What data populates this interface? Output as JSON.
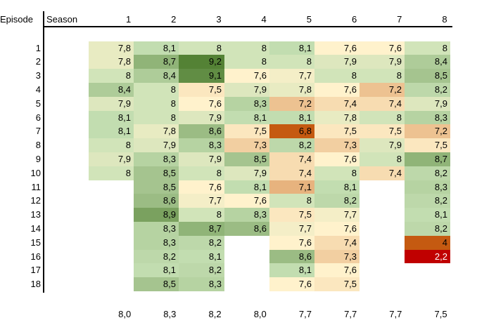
{
  "chart_data": {
    "type": "heatmap",
    "row_header": "Episode",
    "col_header": "Season",
    "seasons": [
      "1",
      "2",
      "3",
      "4",
      "5",
      "6",
      "7",
      "8"
    ],
    "episodes": [
      "1",
      "2",
      "3",
      "4",
      "5",
      "6",
      "7",
      "8",
      "9",
      "10",
      "11",
      "12",
      "13",
      "14",
      "15",
      "16",
      "17",
      "18"
    ],
    "ratings": [
      [
        "7,8",
        "7,8",
        "8",
        "8,4",
        "7,9",
        "8,1",
        "8,1",
        "8",
        "7,9",
        "8",
        null,
        null,
        null,
        null,
        null,
        null,
        null,
        null
      ],
      [
        "8,1",
        "8,7",
        "8,4",
        "8",
        "8",
        "8",
        "7,8",
        "7,9",
        "8,3",
        "8,5",
        "8,5",
        "8,6",
        "8,9",
        "8,3",
        "8,3",
        "8,2",
        "8,1",
        "8,5"
      ],
      [
        "8",
        "9,2",
        "9,1",
        "7,5",
        "7,6",
        "7,9",
        "8,6",
        "8,3",
        "7,9",
        "8",
        "7,6",
        "7,7",
        "8",
        "8,7",
        "8,2",
        "8,1",
        "8,2",
        "8,3"
      ],
      [
        "8",
        "8",
        "7,6",
        "7,9",
        "8,3",
        "8,1",
        "7,5",
        "7,3",
        "8,5",
        "7,9",
        "8,1",
        "7,6",
        "8,3",
        "8,6",
        null,
        null,
        null,
        null
      ],
      [
        "8,1",
        "8",
        "7,7",
        "7,8",
        "7,2",
        "8,1",
        "6,8",
        "8,2",
        "7,4",
        "7,4",
        "7,1",
        "8",
        "7,5",
        "7,7",
        "7,6",
        "8,6",
        "8,1",
        "7,6"
      ],
      [
        "7,6",
        "7,9",
        "8",
        "7,6",
        "7,4",
        "7,8",
        "7,5",
        "7,3",
        "7,6",
        "8",
        "8,1",
        "8,2",
        "7,7",
        "7,6",
        "7,4",
        "7,3",
        "7,6",
        "7,5"
      ],
      [
        "7,6",
        "7,9",
        "8",
        "7,2",
        "7,4",
        "8",
        "7,5",
        "7,9",
        "8",
        "7,4",
        null,
        null,
        null,
        null,
        null,
        null,
        null,
        null
      ],
      [
        "8",
        "8,4",
        "8,5",
        "8,2",
        "7,9",
        "8,3",
        "7,2",
        "7,5",
        "8,7",
        "8,2",
        "8,3",
        "8,2",
        "8,1",
        "8,2",
        "4",
        "2,2",
        null,
        null
      ]
    ],
    "averages": [
      "8,0",
      "8,3",
      "8,2",
      "8,0",
      "7,7",
      "7,7",
      "7,7",
      "7,5"
    ],
    "color_scale": {
      "low": "#c00000",
      "mid_low": "#c55a11",
      "mid": "#fff2cc",
      "high": "#548235"
    }
  }
}
